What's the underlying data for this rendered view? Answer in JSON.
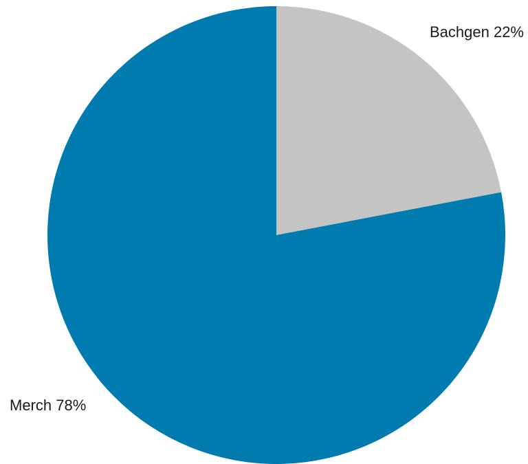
{
  "chart_data": {
    "type": "pie",
    "slices": [
      {
        "label": "Bachgen",
        "value": 22,
        "display": "Bachgen 22%",
        "color": "#c4c4c4"
      },
      {
        "label": "Merch",
        "value": 78,
        "display": "Merch 78%",
        "color": "#007bb0"
      }
    ],
    "start_angle_deg": 0,
    "direction": "clockwise"
  }
}
